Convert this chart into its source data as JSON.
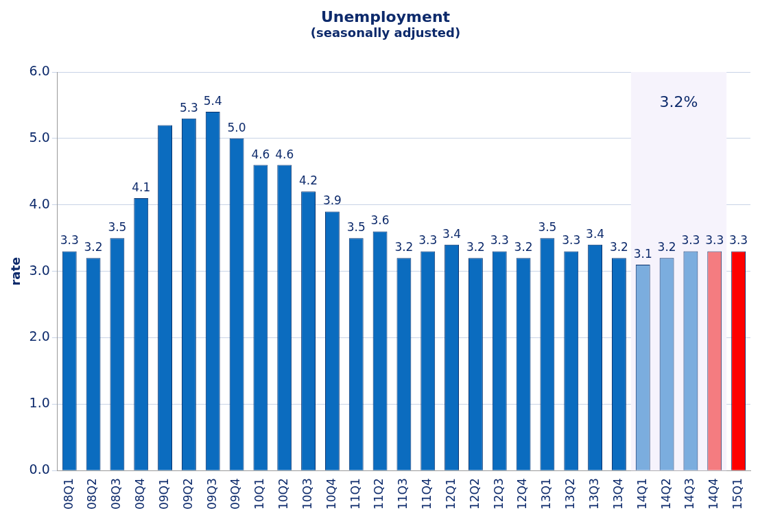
{
  "chart_data": {
    "type": "bar",
    "title": "Unemployment",
    "subtitle": "(seasonally adjusted)",
    "ylabel": "rate",
    "categories": [
      "08Q1",
      "08Q2",
      "08Q3",
      "08Q4",
      "09Q1",
      "09Q2",
      "09Q3",
      "09Q4",
      "10Q1",
      "10Q2",
      "10Q3",
      "10Q4",
      "11Q1",
      "11Q2",
      "11Q3",
      "11Q4",
      "12Q1",
      "12Q2",
      "12Q3",
      "12Q4",
      "13Q1",
      "13Q2",
      "13Q3",
      "13Q4",
      "14Q1",
      "14Q2",
      "14Q3",
      "14Q4",
      "15Q1"
    ],
    "values": [
      3.3,
      3.2,
      3.5,
      4.1,
      5.2,
      5.3,
      5.4,
      5.0,
      4.6,
      4.6,
      4.2,
      3.9,
      3.5,
      3.6,
      3.2,
      3.3,
      3.4,
      3.2,
      3.3,
      3.2,
      3.5,
      3.3,
      3.4,
      3.2,
      3.1,
      3.2,
      3.3,
      3.3,
      3.3
    ],
    "value_labels": [
      "3.3",
      "3.2",
      "3.5",
      "4.1",
      null,
      "5.3",
      "5.4",
      "5.0",
      "4.6",
      "4.6",
      "4.2",
      "3.9",
      "3.5",
      "3.6",
      "3.2",
      "3.3",
      "3.4",
      "3.2",
      "3.3",
      "3.2",
      "3.5",
      "3.3",
      "3.4",
      "3.2",
      "3.1",
      "3.2",
      "3.3",
      "3.3",
      "3.3"
    ],
    "colors": [
      "#0b6cbf",
      "#0b6cbf",
      "#0b6cbf",
      "#0b6cbf",
      "#0b6cbf",
      "#0b6cbf",
      "#0b6cbf",
      "#0b6cbf",
      "#0b6cbf",
      "#0b6cbf",
      "#0b6cbf",
      "#0b6cbf",
      "#0b6cbf",
      "#0b6cbf",
      "#0b6cbf",
      "#0b6cbf",
      "#0b6cbf",
      "#0b6cbf",
      "#0b6cbf",
      "#0b6cbf",
      "#0b6cbf",
      "#0b6cbf",
      "#0b6cbf",
      "#0b6cbf",
      "#7badde",
      "#7badde",
      "#7badde",
      "#f47c80",
      "#fe0000"
    ],
    "ylim": [
      0,
      6
    ],
    "yticks": [
      {
        "value": 0,
        "label": "0.0"
      },
      {
        "value": 1,
        "label": "1.0"
      },
      {
        "value": 2,
        "label": "2.0"
      },
      {
        "value": 3,
        "label": "3.0"
      },
      {
        "value": 4,
        "label": "4.0"
      },
      {
        "value": 5,
        "label": "5.0"
      },
      {
        "value": 6,
        "label": "6.0"
      }
    ],
    "bands": [
      {
        "axis": "x",
        "from": "14Q1",
        "to": "14Q4",
        "label": "3.2%",
        "color": "#f6f3fc"
      }
    ],
    "grid": "y",
    "legend": false
  }
}
